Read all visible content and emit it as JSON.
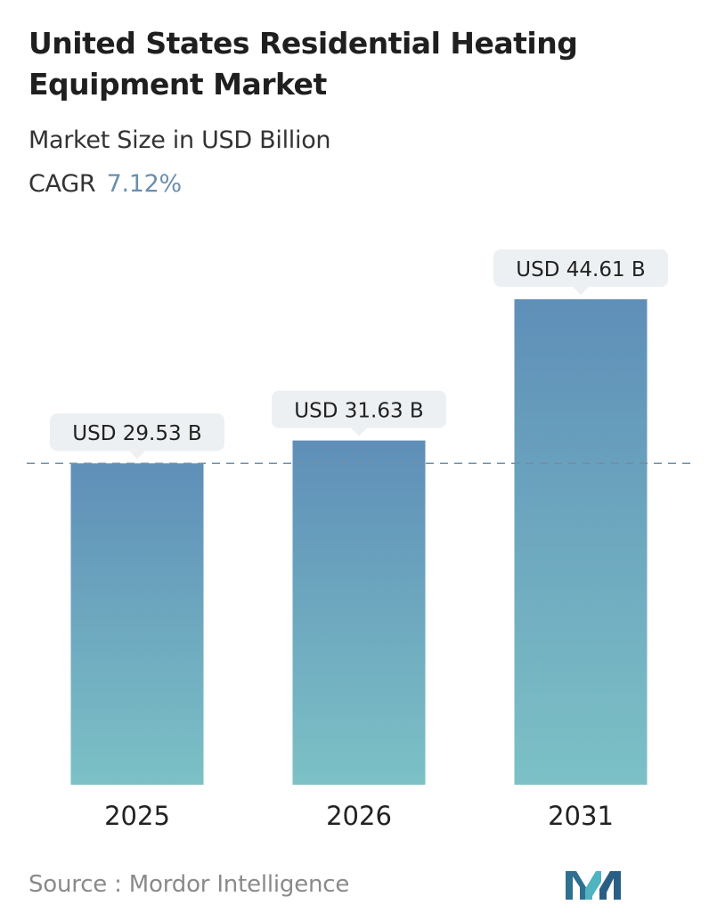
{
  "header": {
    "title": "United States Residential Heating Equipment Market",
    "subtitle": "Market Size in USD Billion",
    "cagr_label": "CAGR",
    "cagr_value": "7.12%"
  },
  "chart_data": {
    "type": "bar",
    "categories": [
      "2025",
      "2026",
      "2031"
    ],
    "values": [
      29.53,
      31.63,
      44.61
    ],
    "data_labels": [
      "USD 29.53 B",
      "USD 31.63 B",
      "USD 44.61 B"
    ],
    "title": "United States Residential Heating Equipment Market",
    "subtitle": "Market Size in USD Billion",
    "xlabel": "",
    "ylabel": "",
    "ylim": [
      0,
      44.61
    ],
    "grid": false,
    "reference_line": {
      "value": 29.53,
      "style": "dashed"
    },
    "colors": {
      "bar_top": "#5f8fb8",
      "bar_bottom": "#7cc1c6",
      "label_bg": "#edf0f2",
      "reference_line": "#6f8fa6",
      "cagr_accent": "#6a8fb0"
    }
  },
  "footer": {
    "source_text": "Source :  Mordor Intelligence",
    "logo_name": "mordor-intelligence-logo"
  }
}
